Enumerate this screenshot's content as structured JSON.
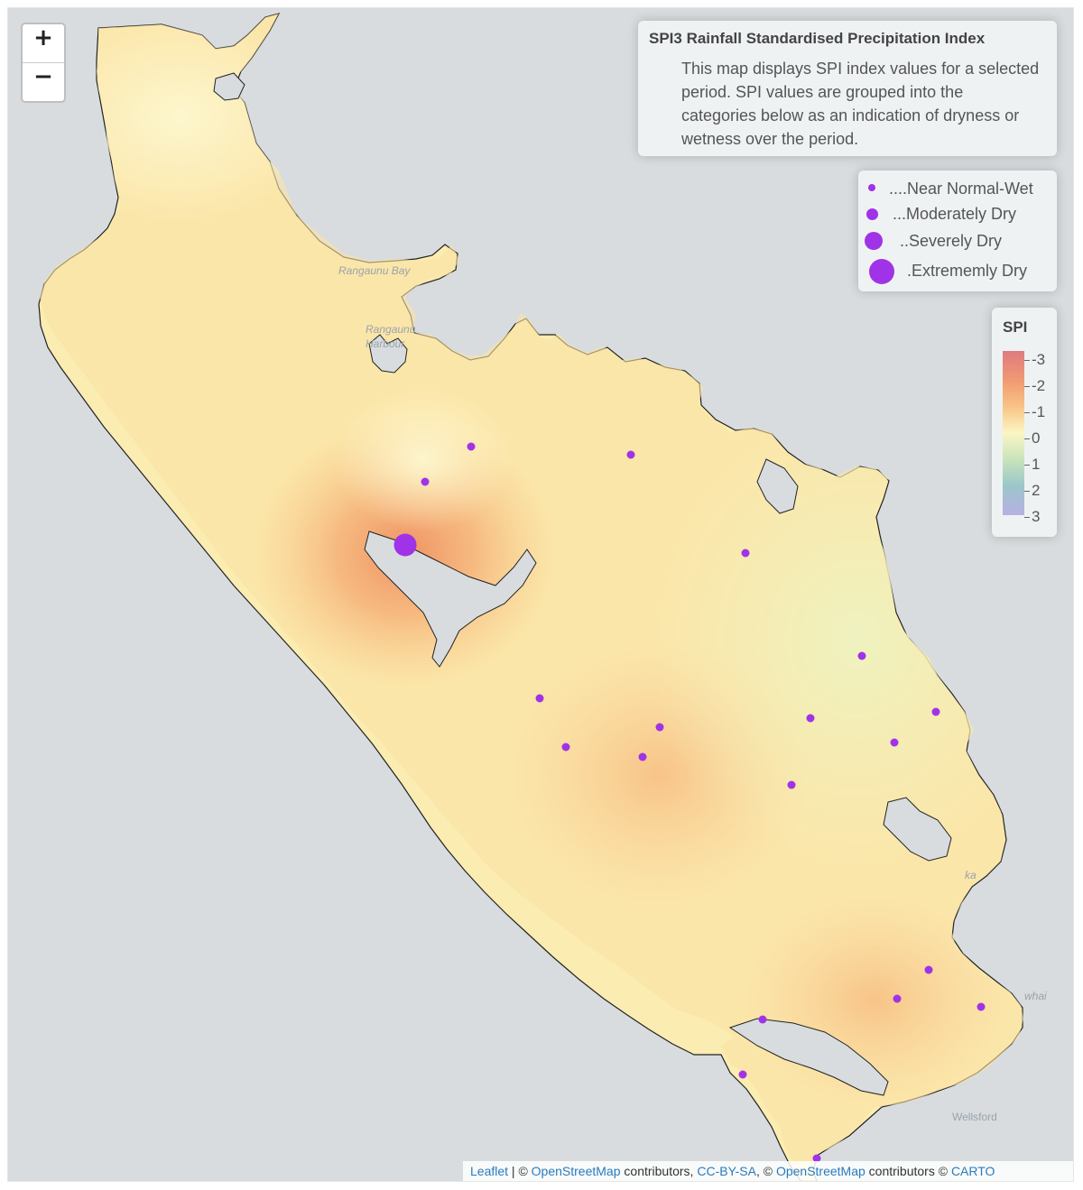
{
  "map": {
    "zoom_in_label": "+",
    "zoom_out_label": "−",
    "info": {
      "title": "SPI3 Rainfall Standardised Precipitation Index",
      "description": "This map displays SPI index values for a selected period. SPI values are grouped into the categories below as an indication of dryness or wetness over the period."
    },
    "size_legend": [
      {
        "label": "....Near Normal-Wet",
        "category": "near-normal-wet"
      },
      {
        "label": "...Moderately Dry",
        "category": "moderately-dry"
      },
      {
        "label": "..Severely Dry",
        "category": "severely-dry"
      },
      {
        "label": ".Extrememly Dry",
        "category": "extremely-dry"
      }
    ],
    "color_legend": {
      "title": "SPI",
      "ticks": [
        "-3",
        "-2",
        "-1",
        "0",
        "1",
        "2",
        "3"
      ],
      "colors": [
        "#df7a80",
        "#f09a72",
        "#f8c486",
        "#fbf6c4",
        "#c9e4bb",
        "#9bc6c9",
        "#b7b0e3"
      ]
    },
    "place_labels": [
      "Rangaunu Bay",
      "Rangaunu Harbour",
      "Wellsford",
      "ka",
      "whai"
    ],
    "attribution": {
      "leaflet": "Leaflet",
      "sep1": " | © ",
      "osm1": "OpenStreetMap",
      "mid1": " contributors, ",
      "ccbysa": "CC-BY-SA",
      "mid2": ", © ",
      "osm2": "OpenStreetMap",
      "mid3": " contributors © ",
      "carto": "CARTO"
    },
    "marker_color": "#a033e8",
    "land_base_color": "#fbecb2"
  }
}
